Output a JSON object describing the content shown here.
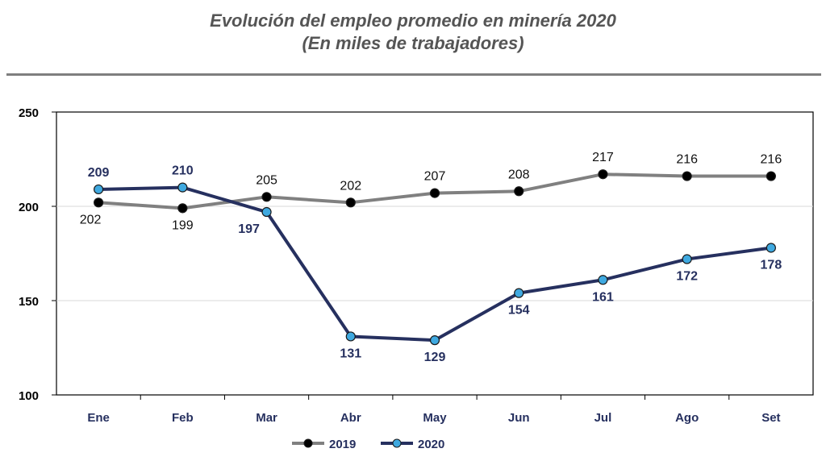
{
  "chart_data": {
    "type": "line",
    "title": "Evolución del empleo promedio en minería 2020",
    "subtitle": "(En miles de trabajadores)",
    "categories": [
      "Ene",
      "Feb",
      "Mar",
      "Abr",
      "May",
      "Jun",
      "Jul",
      "Ago",
      "Set"
    ],
    "series": [
      {
        "name": "2019",
        "values": [
          202,
          199,
          205,
          202,
          207,
          208,
          217,
          216,
          216
        ],
        "line_color": "#808080",
        "marker_color": "#000000",
        "label_color": "#111111"
      },
      {
        "name": "2020",
        "values": [
          209,
          210,
          197,
          131,
          129,
          154,
          161,
          172,
          178
        ],
        "line_color": "#26305f",
        "marker_color": "#3fa9e0",
        "label_color": "#26305f"
      }
    ],
    "ylim": [
      100,
      250
    ],
    "yticks": [
      100,
      150,
      200,
      250
    ],
    "grid": true,
    "legend_position": "bottom"
  }
}
